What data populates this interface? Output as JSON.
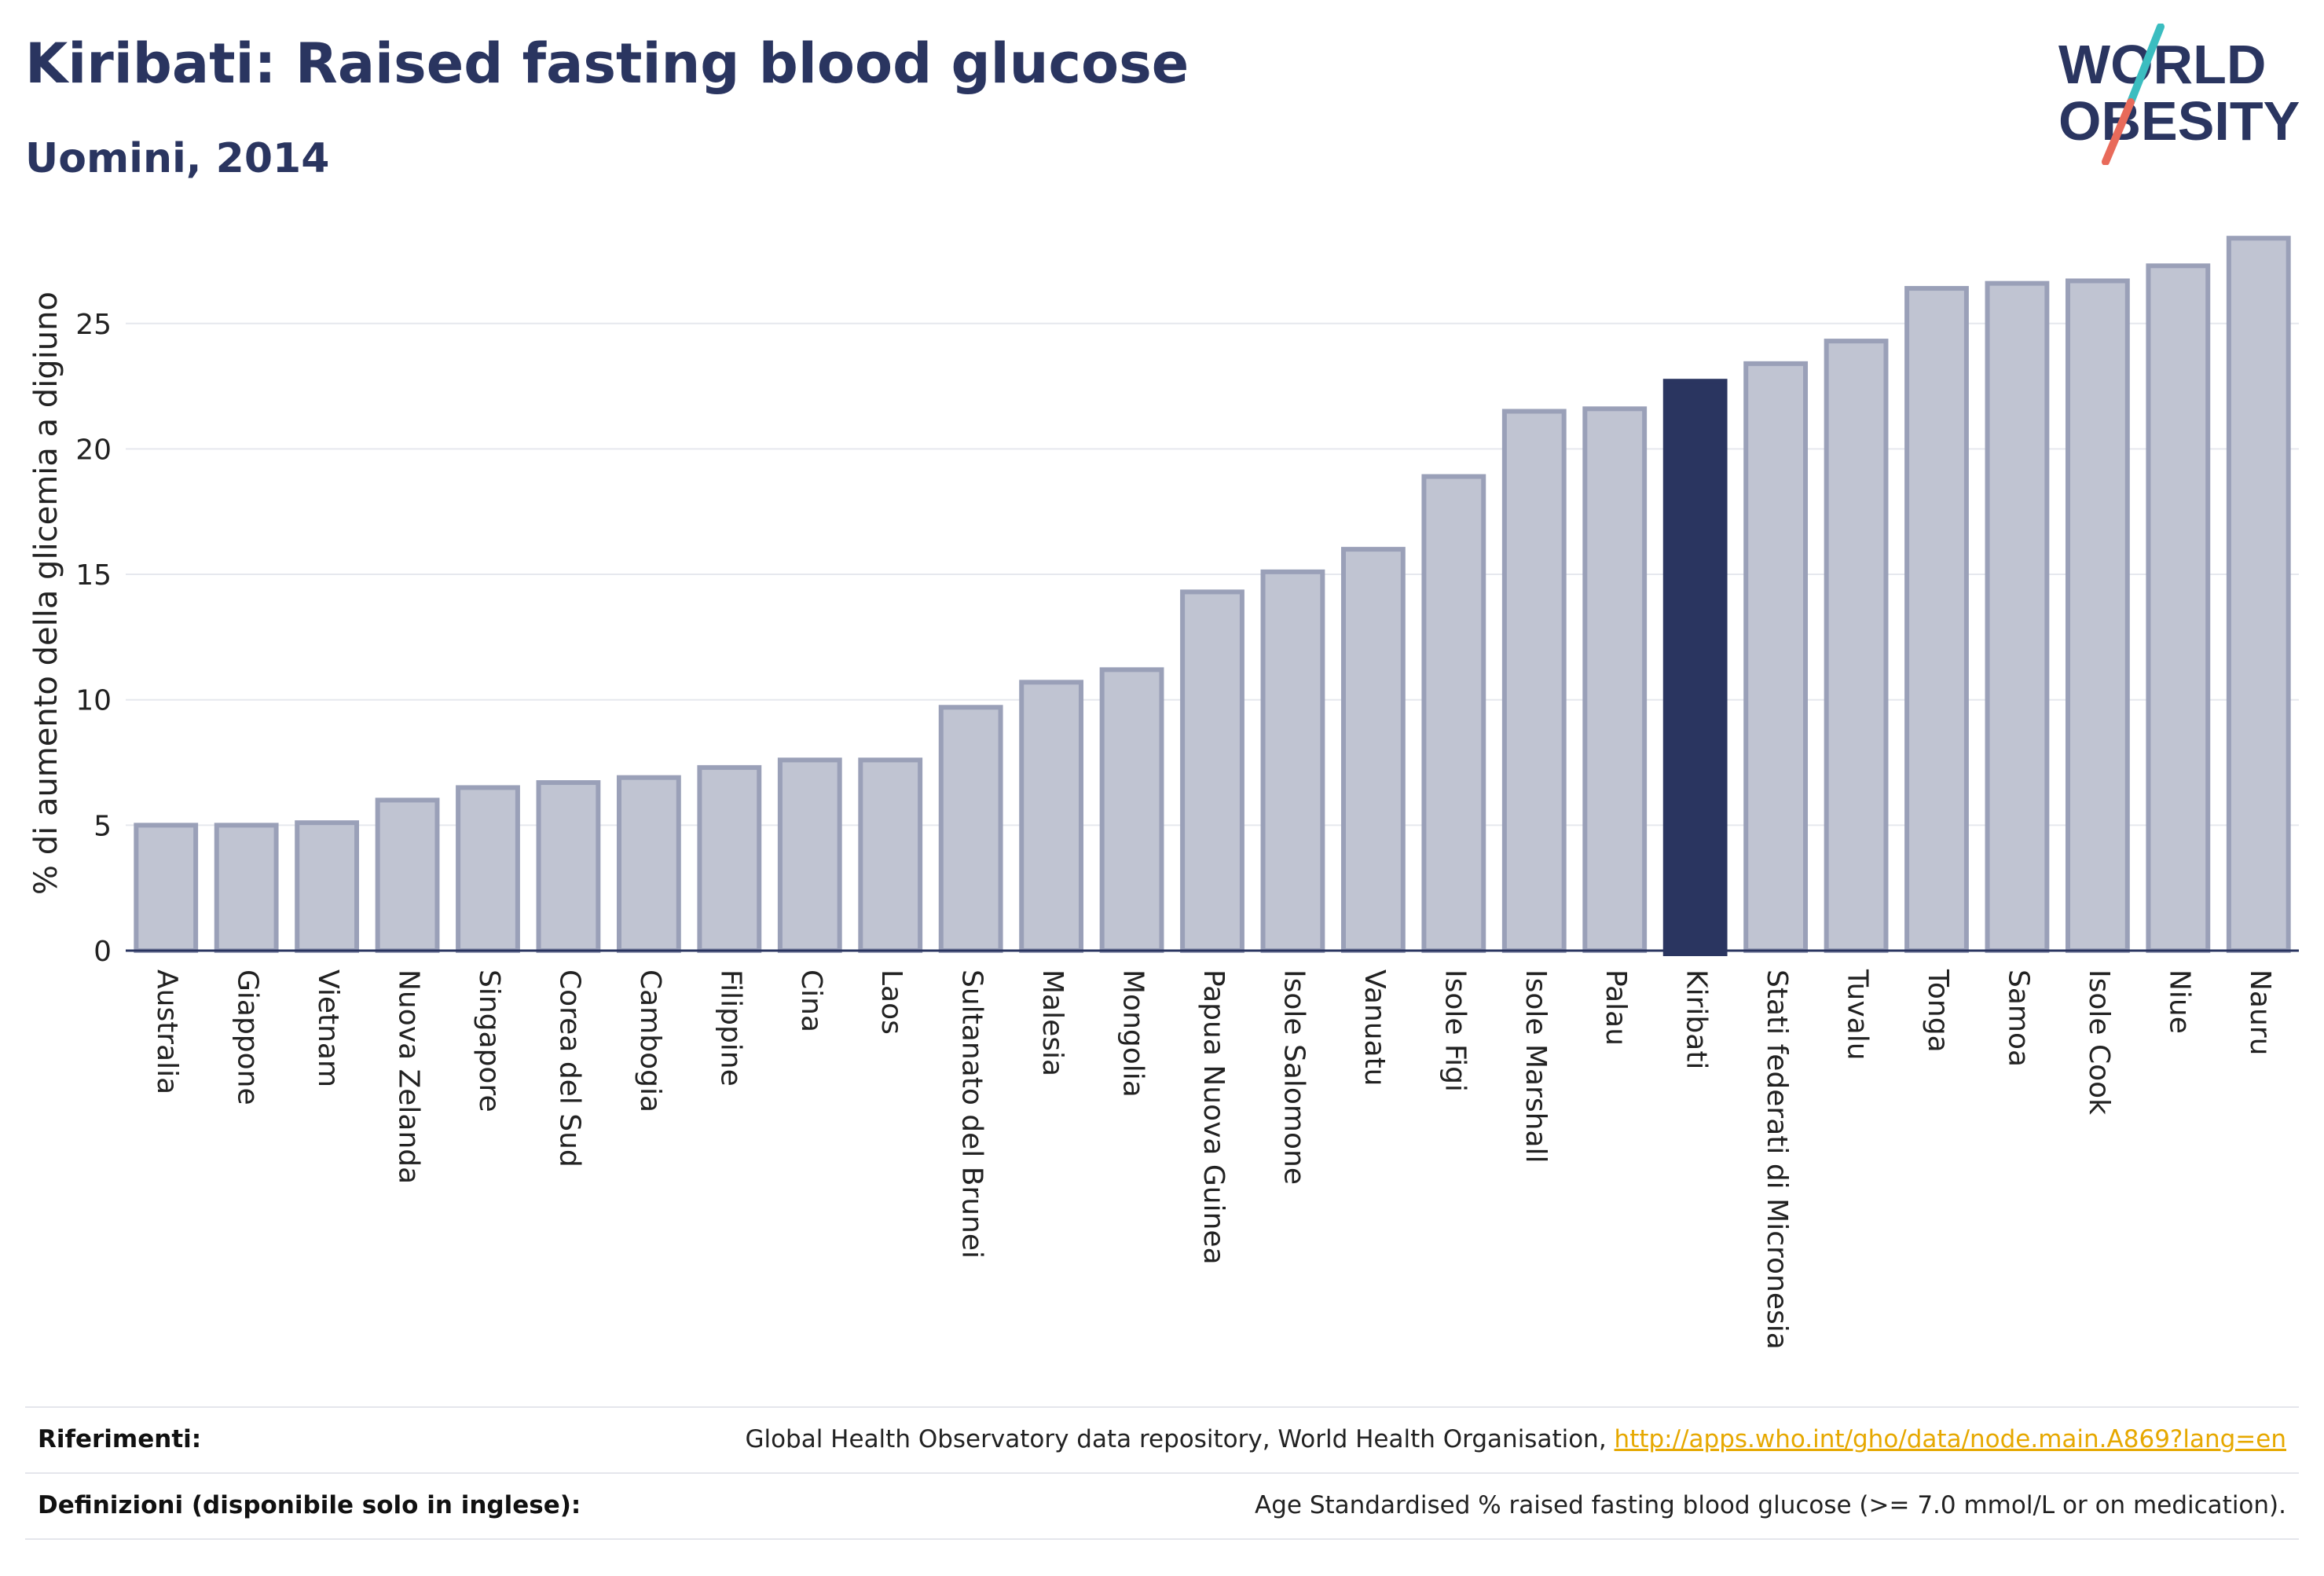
{
  "header": {
    "title": "Kiribati: Raised fasting blood glucose",
    "subtitle": "Uomini, 2014"
  },
  "logo": {
    "line1": "WORLD",
    "line2": "OBESITY",
    "colors": {
      "text": "#2a3560",
      "slash_teal": "#3bbdc0",
      "slash_coral": "#e86a5a"
    }
  },
  "chart_data": {
    "type": "bar",
    "title": "Kiribati: Raised fasting blood glucose",
    "subtitle": "Uomini, 2014",
    "ylabel": "% di aumento della glicemia a digiuno",
    "xlabel": "",
    "ylim": [
      0,
      28.5
    ],
    "yticks": [
      0,
      5,
      10,
      15,
      20,
      25
    ],
    "grid": true,
    "highlight": "Kiribati",
    "colors": {
      "bar": "#c0c4d2",
      "bar_border": "#9aa0b8",
      "highlight": "#2a3560",
      "grid": "#e6e8ee",
      "axis": "#2a3560"
    },
    "categories": [
      "Australia",
      "Giappone",
      "Vietnam",
      "Nuova Zelanda",
      "Singapore",
      "Corea del Sud",
      "Cambogia",
      "Filippine",
      "Cina",
      "Laos",
      "Sultanato del Brunei",
      "Malesia",
      "Mongolia",
      "Papua Nuova Guinea",
      "Isole Salomone",
      "Vanuatu",
      "Isole Figi",
      "Isole Marshall",
      "Palau",
      "Kiribati",
      "Stati federati di Micronesia",
      "Tuvalu",
      "Tonga",
      "Samoa",
      "Isole Cook",
      "Niue",
      "Nauru"
    ],
    "values": [
      5.0,
      5.0,
      5.1,
      6.0,
      6.5,
      6.7,
      6.9,
      7.3,
      7.6,
      7.6,
      9.7,
      10.7,
      11.2,
      14.3,
      15.1,
      16.0,
      18.9,
      21.5,
      21.6,
      22.7,
      23.4,
      24.3,
      26.4,
      26.6,
      26.7,
      27.3,
      28.4
    ]
  },
  "footer": {
    "references_label": "Riferimenti:",
    "references_text": "Global Health Observatory data repository, World Health Organisation,",
    "references_link": "http://apps.who.int/gho/data/node.main.A869?lang=en",
    "definitions_label": "Definizioni (disponibile solo in inglese):",
    "definitions_text": "Age Standardised % raised fasting blood glucose (>= 7.0 mmol/L or on medication)."
  }
}
